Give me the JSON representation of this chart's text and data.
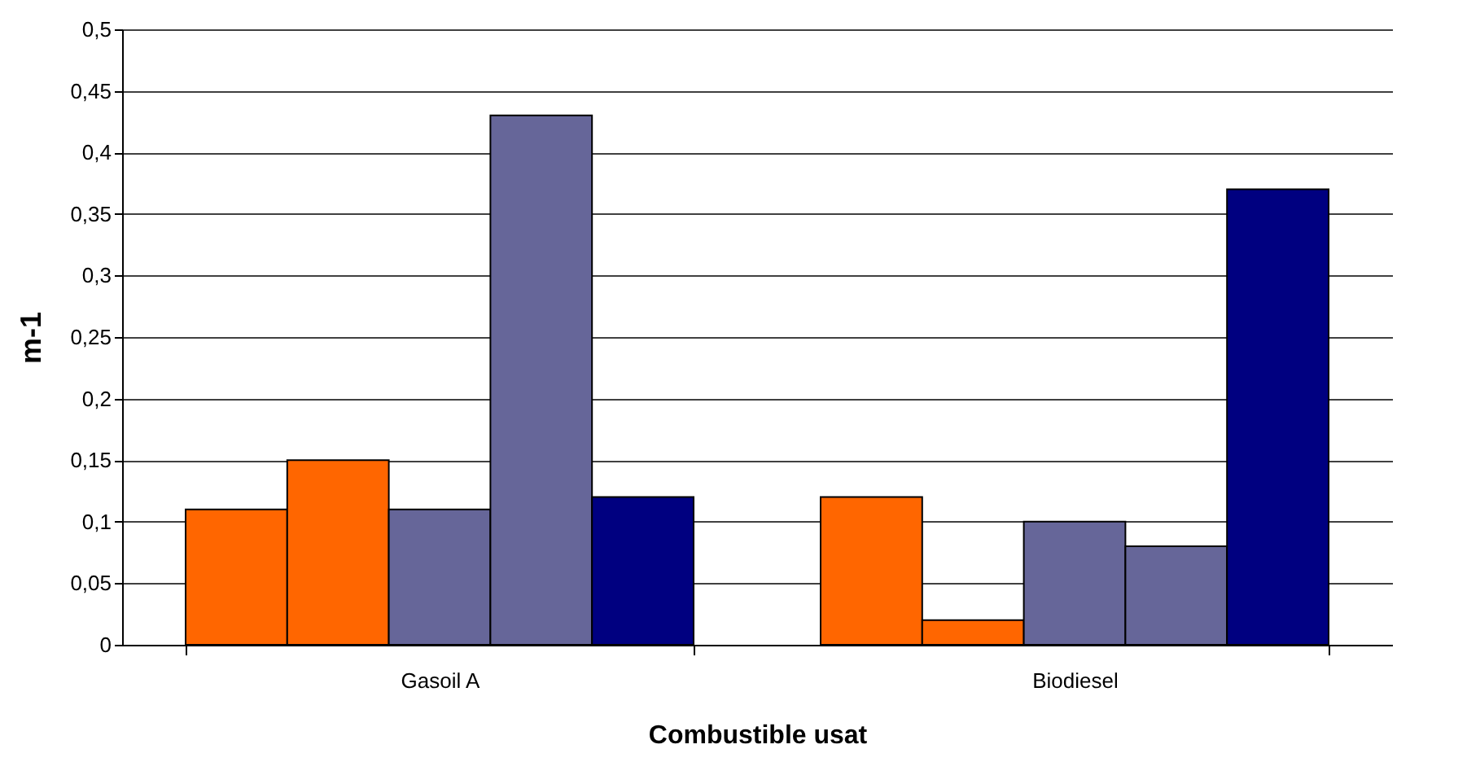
{
  "chart_data": {
    "type": "bar",
    "xlabel": "Combustible usat",
    "ylabel": "m-1",
    "categories": [
      "Gasoil A",
      "Biodiesel"
    ],
    "series": [
      {
        "color": "#ff6600",
        "values": [
          0.11,
          0.12
        ]
      },
      {
        "color": "#ff6600",
        "values": [
          0.15,
          0.02
        ]
      },
      {
        "color": "#666699",
        "values": [
          0.11,
          0.1
        ]
      },
      {
        "color": "#666699",
        "values": [
          0.43,
          0.08
        ]
      },
      {
        "color": "#000080",
        "values": [
          0.12,
          0.37
        ]
      }
    ],
    "ylim": [
      0,
      0.5
    ],
    "yticks": [
      0,
      {
        "value": 0.05,
        "label": "0,05"
      },
      {
        "value": 0.1,
        "label": "0,1"
      },
      {
        "value": 0.15,
        "label": "0,15"
      },
      {
        "value": 0.2,
        "label": "0,2"
      },
      {
        "value": 0.25,
        "label": "0,25"
      },
      {
        "value": 0.3,
        "label": "0,3"
      },
      {
        "value": 0.35,
        "label": "0,35"
      },
      {
        "value": 0.4,
        "label": "0,4"
      },
      {
        "value": 0.45,
        "label": "0,45"
      },
      {
        "value": 0.5,
        "label": "0,5"
      }
    ],
    "grid": "y"
  }
}
